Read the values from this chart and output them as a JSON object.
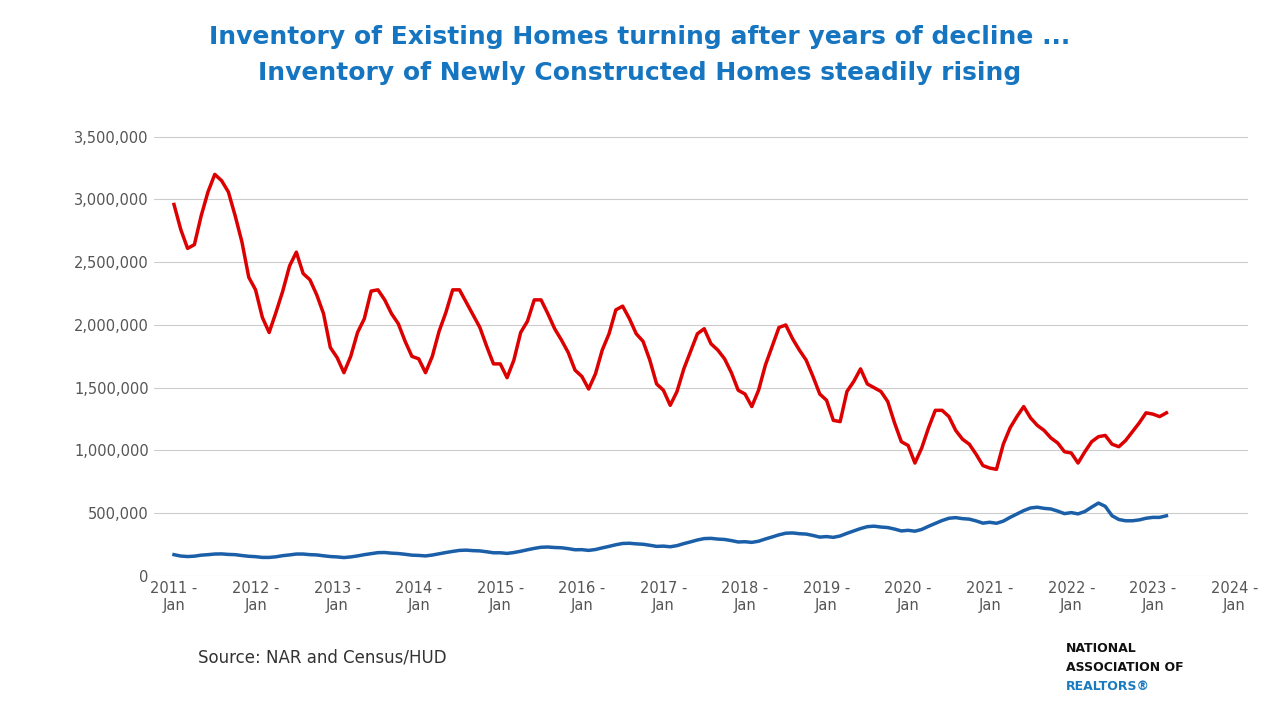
{
  "title_line1": "Inventory of Existing Homes turning after years of decline ...",
  "title_line2": "Inventory of Newly Constructed Homes steadily rising",
  "title_color": "#1575c0",
  "source_text": "Source: NAR and Census/HUD",
  "background_color": "#ffffff",
  "existing_color": "#dd0000",
  "new_color": "#1a5fa8",
  "ylim": [
    0,
    3700000
  ],
  "yticks": [
    0,
    500000,
    1000000,
    1500000,
    2000000,
    2500000,
    3000000,
    3500000
  ],
  "existing_homes": [
    2960000,
    2760000,
    2610000,
    2640000,
    2870000,
    3060000,
    3200000,
    3150000,
    3060000,
    2870000,
    2660000,
    2380000,
    2280000,
    2060000,
    1940000,
    2100000,
    2270000,
    2470000,
    2580000,
    2410000,
    2360000,
    2240000,
    2090000,
    1820000,
    1740000,
    1620000,
    1750000,
    1940000,
    2050000,
    2270000,
    2280000,
    2200000,
    2090000,
    2010000,
    1870000,
    1750000,
    1730000,
    1620000,
    1750000,
    1950000,
    2100000,
    2280000,
    2280000,
    2180000,
    2080000,
    1980000,
    1830000,
    1690000,
    1690000,
    1580000,
    1720000,
    1940000,
    2030000,
    2200000,
    2200000,
    2090000,
    1970000,
    1880000,
    1780000,
    1640000,
    1590000,
    1490000,
    1610000,
    1800000,
    1930000,
    2120000,
    2150000,
    2050000,
    1930000,
    1870000,
    1720000,
    1530000,
    1480000,
    1360000,
    1470000,
    1650000,
    1790000,
    1930000,
    1970000,
    1850000,
    1800000,
    1730000,
    1620000,
    1480000,
    1450000,
    1350000,
    1480000,
    1680000,
    1830000,
    1980000,
    2000000,
    1890000,
    1800000,
    1720000,
    1590000,
    1450000,
    1400000,
    1240000,
    1230000,
    1470000,
    1550000,
    1650000,
    1530000,
    1500000,
    1470000,
    1390000,
    1220000,
    1070000,
    1040000,
    900000,
    1020000,
    1180000,
    1320000,
    1320000,
    1270000,
    1160000,
    1090000,
    1050000,
    970000,
    880000,
    860000,
    850000,
    1050000,
    1180000,
    1270000,
    1350000,
    1260000,
    1200000,
    1160000,
    1100000,
    1060000,
    990000,
    980000,
    900000,
    990000,
    1070000,
    1110000,
    1120000,
    1050000,
    1030000,
    1080000,
    1150000,
    1220000,
    1300000,
    1290000,
    1270000,
    1300000
  ],
  "new_homes": [
    170000,
    159000,
    155000,
    158000,
    166000,
    170000,
    175000,
    176000,
    172000,
    170000,
    163000,
    157000,
    154000,
    148000,
    148000,
    153000,
    162000,
    168000,
    175000,
    175000,
    170000,
    168000,
    161000,
    155000,
    152000,
    147000,
    152000,
    160000,
    170000,
    178000,
    186000,
    187000,
    182000,
    179000,
    173000,
    166000,
    164000,
    160000,
    167000,
    177000,
    187000,
    196000,
    204000,
    206000,
    202000,
    200000,
    193000,
    185000,
    185000,
    180000,
    187000,
    197000,
    209000,
    220000,
    229000,
    231000,
    227000,
    225000,
    218000,
    209000,
    210000,
    204000,
    211000,
    224000,
    236000,
    249000,
    259000,
    261000,
    256000,
    253000,
    245000,
    236000,
    238000,
    233000,
    242000,
    258000,
    272000,
    287000,
    298000,
    300000,
    294000,
    291000,
    282000,
    271000,
    273000,
    268000,
    277000,
    295000,
    311000,
    328000,
    341000,
    343000,
    337000,
    334000,
    323000,
    310000,
    314000,
    308000,
    319000,
    340000,
    359000,
    378000,
    393000,
    397000,
    390000,
    386000,
    374000,
    359000,
    364000,
    357000,
    371000,
    396000,
    419000,
    442000,
    460000,
    465000,
    457000,
    453000,
    439000,
    421000,
    428000,
    420000,
    437000,
    467000,
    494000,
    521000,
    542000,
    548000,
    539000,
    534000,
    517000,
    497000,
    505000,
    495000,
    514000,
    549000,
    581000,
    555000,
    480000,
    450000,
    440000,
    440000,
    447000,
    460000,
    467000,
    467000,
    480000
  ]
}
